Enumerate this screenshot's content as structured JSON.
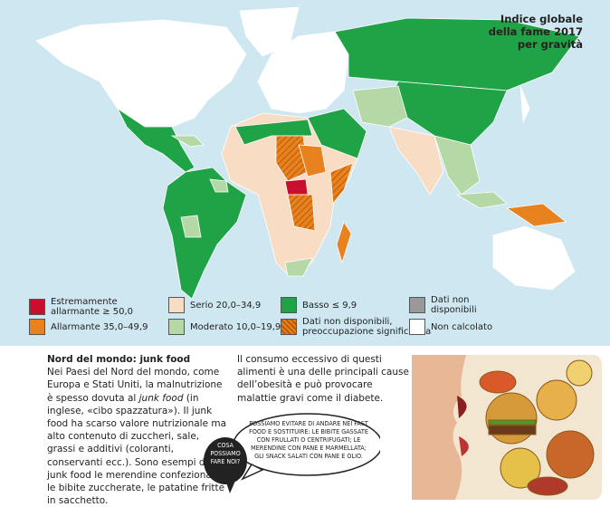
{
  "map": {
    "title_lines": [
      "Indice globale",
      "della fame 2017",
      "per gravità"
    ],
    "legend": [
      {
        "label_lines": [
          "Estremamente",
          "allarmante ≥ 50,0"
        ]
      },
      {
        "label_lines": [
          "Allarmante 35,0–49,9"
        ]
      },
      {
        "label_lines": [
          "Serio 20,0–34,9"
        ]
      },
      {
        "label_lines": [
          "Moderato 10,0–19,9"
        ]
      },
      {
        "label_lines": [
          "Basso ≤ 9,9"
        ]
      },
      {
        "label_lines": [
          "Dati non disponibili,",
          "preoccupazione significativa"
        ]
      },
      {
        "label_lines": [
          "Dati non",
          "disponibili"
        ]
      },
      {
        "label_lines": [
          "Non calcolato"
        ]
      }
    ]
  },
  "article": {
    "heading": "Nord del mondo: junk food",
    "paragraph1": [
      "Nei Paesi del Nord del mondo, come Europa e Stati Uniti, la malnutrizione è spesso dovuta al ",
      "junk food",
      " (in inglese, «cibo spazzatura»). Il junk food ha scarso valore nutrizionale ma alto contenuto di zuccheri, sale, grassi e additivi (coloranti, conservanti ecc.). Sono esempi di junk food le merendine confezionate, le bibite zuccherate, le patatine fritte in sacchetto."
    ],
    "paragraph2": "Il consumo eccessivo di questi alimenti è una delle principali cause dell’obesità e può provocare malattie gravi come il diabete."
  },
  "bubbles": {
    "question": "COSA POSSIAMO FARE NOI?",
    "answer": "POSSIAMO EVITARE DI ANDARE NEI FAST FOOD E SOSTITUIRE: LE BIBITE GASSATE CON FRULLATI O CENTRIFUGATI; LE MERENDINE CON PANE E MARMELLATA; GLI SNACK SALATI CON PANE E OLIO."
  }
}
